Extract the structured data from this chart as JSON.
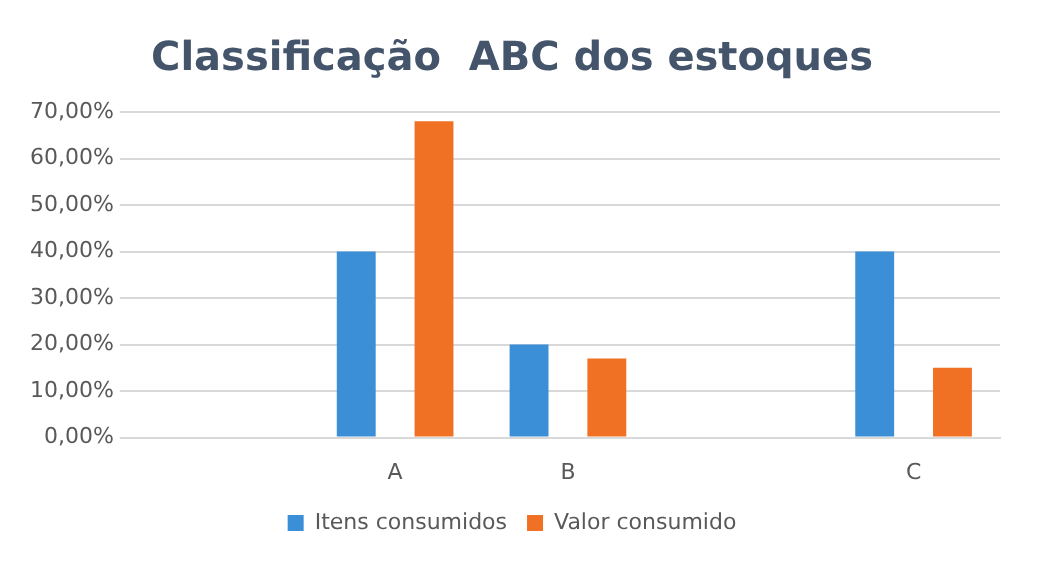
{
  "chart_data": {
    "type": "bar",
    "title": "Classificação  ABC dos estoques",
    "categories": [
      null,
      "A",
      "B",
      null,
      "C"
    ],
    "series": [
      {
        "name": "Itens consumidos",
        "color": "#3a8fd6",
        "values": [
          null,
          40,
          20,
          null,
          40
        ]
      },
      {
        "name": "Valor consumido",
        "color": "#f07124",
        "values": [
          null,
          68,
          17,
          null,
          15
        ]
      }
    ],
    "ylim": [
      0,
      70
    ],
    "yticks": [
      {
        "value": 0,
        "label": "0,00%"
      },
      {
        "value": 10,
        "label": "10,00%"
      },
      {
        "value": 20,
        "label": "20,00%"
      },
      {
        "value": 30,
        "label": "30,00%"
      },
      {
        "value": 40,
        "label": "40,00%"
      },
      {
        "value": 50,
        "label": "50,00%"
      },
      {
        "value": 60,
        "label": "60,00%"
      },
      {
        "value": 70,
        "label": "70,00%"
      }
    ],
    "grid": "y",
    "legend": "bottom"
  }
}
